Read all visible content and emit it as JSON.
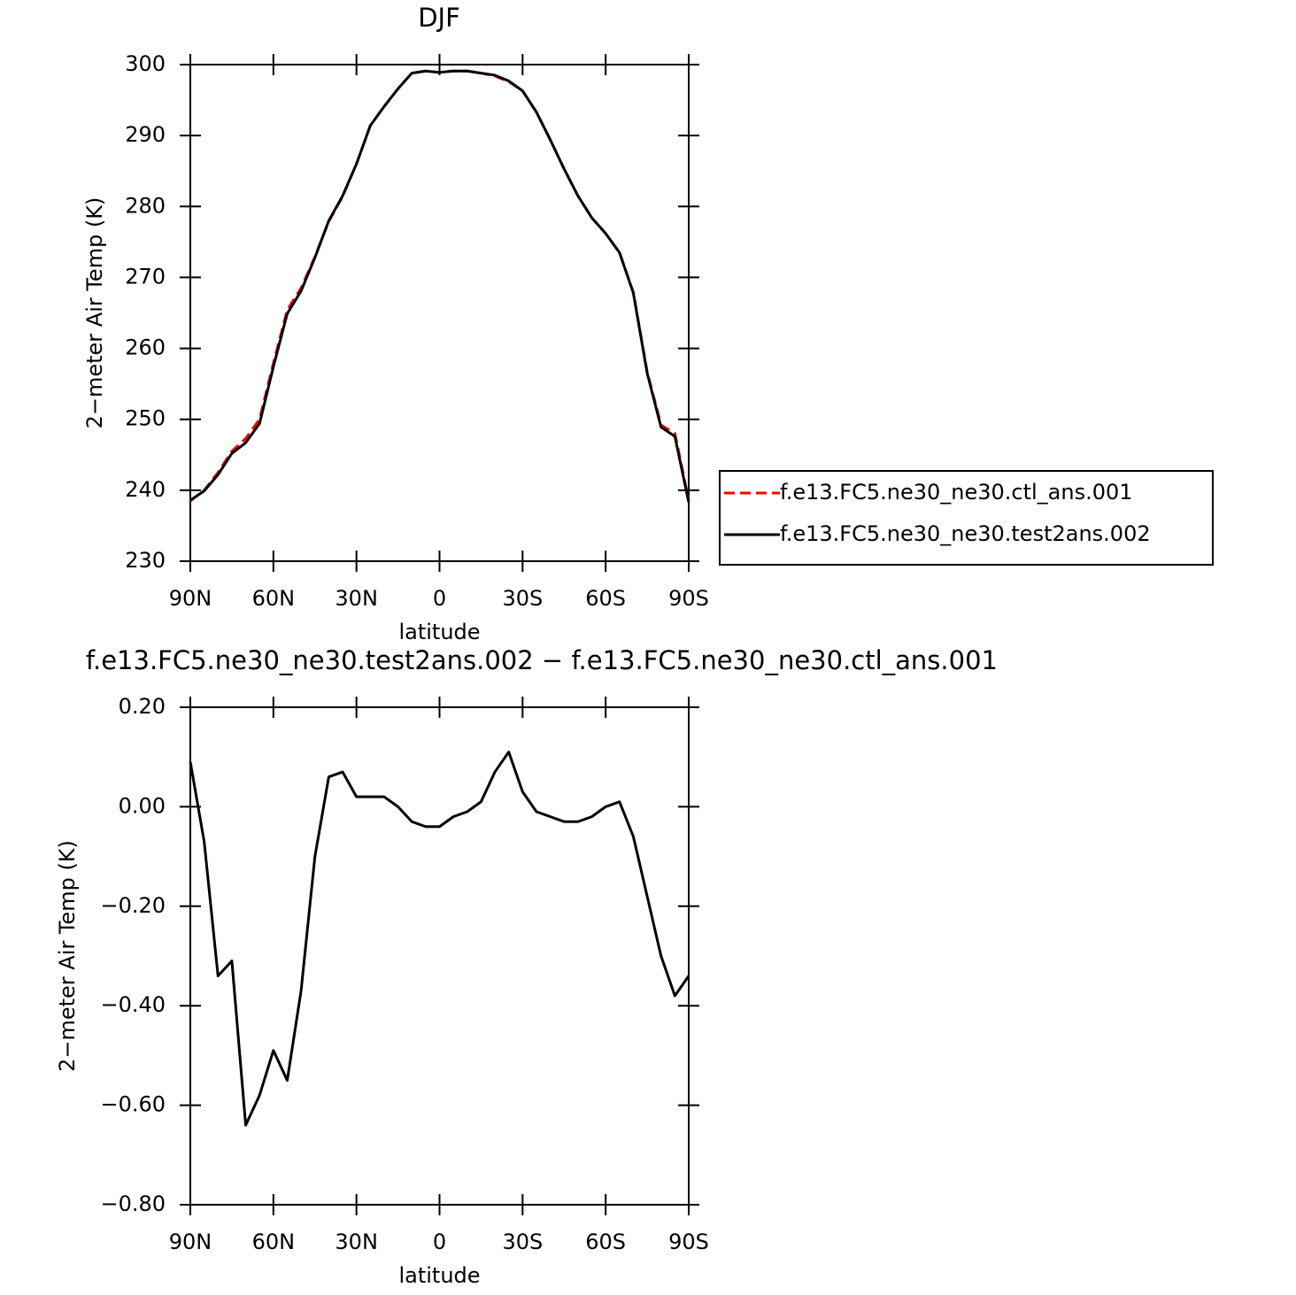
{
  "chart_data": [
    {
      "type": "line",
      "title": "DJF",
      "xlabel": "latitude",
      "ylabel": "2−meter Air Temp (K)",
      "x": [
        90,
        85,
        80,
        75,
        70,
        65,
        60,
        55,
        50,
        45,
        40,
        35,
        30,
        25,
        20,
        15,
        10,
        5,
        0,
        -5,
        -10,
        -15,
        -20,
        -25,
        -30,
        -35,
        -40,
        -45,
        -50,
        -55,
        -60,
        -65,
        -70,
        -75,
        -80,
        -85,
        -90
      ],
      "series": [
        {
          "name": "f.e13.FC5.ne30_ne30.ctl_ans.001",
          "color": "#ff0000",
          "dash": "dashed",
          "values": [
            238.5,
            240,
            242.5,
            245.5,
            247.3,
            250,
            257.9,
            265.4,
            268.5,
            272.9,
            277.9,
            281.4,
            286,
            291.4,
            294.1,
            296.6,
            298.8,
            299.1,
            298.9,
            299.1,
            299.1,
            298.8,
            298.4,
            297.6,
            296.3,
            293.3,
            289.4,
            285.3,
            281.5,
            278.4,
            276.2,
            273.5,
            267.9,
            256.7,
            249.2,
            248,
            238.6
          ]
        },
        {
          "name": "f.e13.FC5.ne30_ne30.test2ans.002",
          "color": "#000000",
          "dash": "solid",
          "values": [
            238.6,
            239.9,
            242.2,
            245.2,
            246.7,
            249.4,
            257.4,
            264.9,
            268.1,
            272.8,
            278,
            281.5,
            286,
            291.4,
            294.1,
            296.6,
            298.8,
            299.1,
            298.9,
            299.1,
            299.1,
            298.8,
            298.5,
            297.7,
            296.3,
            293.3,
            289.4,
            285.3,
            281.5,
            278.4,
            276.2,
            273.5,
            267.8,
            256.5,
            248.9,
            247.6,
            238.3
          ]
        }
      ],
      "xlim": [
        90,
        -90
      ],
      "xticks": [
        {
          "value": 90,
          "label": "90N"
        },
        {
          "value": 60,
          "label": "60N"
        },
        {
          "value": 30,
          "label": "30N"
        },
        0,
        {
          "value": -30,
          "label": "30S"
        },
        {
          "value": -60,
          "label": "60S"
        },
        {
          "value": -90,
          "label": "90S"
        }
      ],
      "ylim": [
        230,
        300
      ],
      "yticks": [
        230,
        240,
        250,
        260,
        270,
        280,
        290,
        300
      ],
      "legend": "right"
    },
    {
      "type": "line",
      "title": "f.e13.FC5.ne30_ne30.test2ans.002 − f.e13.FC5.ne30_ne30.ctl_ans.001",
      "xlabel": "latitude",
      "ylabel": "2−meter Air Temp (K)",
      "x": [
        90,
        85,
        80,
        75,
        70,
        65,
        60,
        55,
        50,
        45,
        40,
        35,
        30,
        25,
        20,
        15,
        10,
        5,
        0,
        -5,
        -10,
        -15,
        -20,
        -25,
        -30,
        -35,
        -40,
        -45,
        -50,
        -55,
        -60,
        -65,
        -70,
        -75,
        -80,
        -85,
        -90
      ],
      "series": [
        {
          "color": "#000000",
          "dash": "solid",
          "values": [
            0.09,
            -0.07,
            -0.34,
            -0.31,
            -0.64,
            -0.58,
            -0.49,
            -0.55,
            -0.37,
            -0.1,
            0.06,
            0.07,
            0.02,
            0.02,
            0.02,
            0,
            -0.03,
            -0.04,
            -0.04,
            -0.02,
            -0.01,
            0.01,
            0.07,
            0.11,
            0.03,
            -0.01,
            -0.02,
            -0.03,
            -0.03,
            -0.02,
            0,
            0.01,
            -0.06,
            -0.18,
            -0.3,
            -0.38,
            -0.34
          ]
        }
      ],
      "xlim": [
        90,
        -90
      ],
      "xticks": [
        {
          "value": 90,
          "label": "90N"
        },
        {
          "value": 60,
          "label": "60N"
        },
        {
          "value": 30,
          "label": "30N"
        },
        0,
        {
          "value": -30,
          "label": "30S"
        },
        {
          "value": -60,
          "label": "60S"
        },
        {
          "value": -90,
          "label": "90S"
        }
      ],
      "ylim": [
        -0.8,
        0.2
      ],
      "yticks": [
        {
          "value": -0.8,
          "label": "−0.80"
        },
        {
          "value": -0.6,
          "label": "−0.60"
        },
        {
          "value": -0.4,
          "label": "−0.40"
        },
        {
          "value": -0.2,
          "label": "−0.20"
        },
        {
          "value": 0,
          "label": "0.00"
        },
        {
          "value": 0.2,
          "label": "0.20"
        }
      ]
    }
  ]
}
